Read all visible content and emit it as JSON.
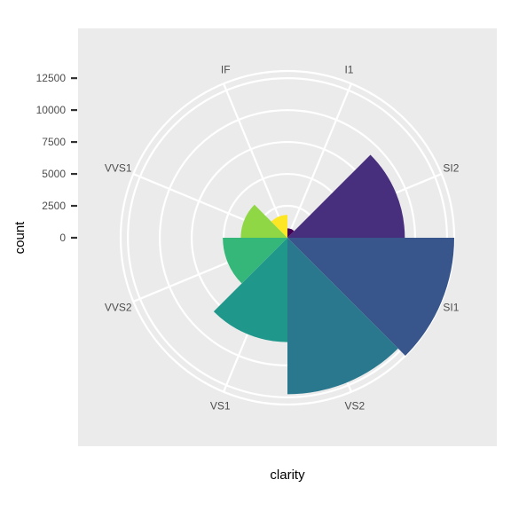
{
  "chart_data": {
    "type": "bar",
    "coord": "polar",
    "title": "",
    "xlabel": "clarity",
    "ylabel": "count",
    "categories": [
      "I1",
      "SI2",
      "SI1",
      "VS2",
      "VS1",
      "VVS2",
      "VVS1",
      "IF"
    ],
    "values": [
      741,
      9194,
      13065,
      12258,
      8171,
      5066,
      3655,
      1790
    ],
    "ylim": [
      0,
      13065
    ],
    "y_ticks": [
      0,
      2500,
      5000,
      7500,
      10000,
      12500
    ],
    "grid": true,
    "legend": "none",
    "colors": {
      "I1": "#440154",
      "SI2": "#472F7D",
      "SI1": "#39568C",
      "VS2": "#2A788E",
      "VS1": "#1F988B",
      "VVS2": "#35B779",
      "VVS1": "#8FD744",
      "IF": "#FDE725"
    },
    "panel_background": "#EBEBEB",
    "grid_color": "#FFFFFF"
  }
}
